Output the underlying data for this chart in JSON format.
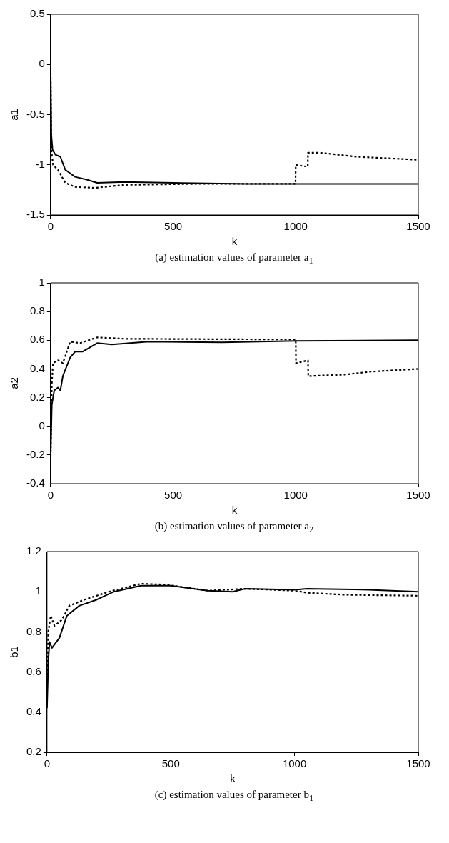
{
  "chart_data": [
    {
      "type": "line",
      "ylabel": "a1",
      "xlabel": "k",
      "xlim": [
        0,
        1500
      ],
      "xticks": [
        0,
        500,
        1000,
        1500
      ],
      "ylim": [
        -1.5,
        0.5
      ],
      "yticks": [
        -1.5,
        -1,
        -0.5,
        0,
        0.5
      ],
      "grid": false,
      "legend": false,
      "marker": "none",
      "annotations": [
        "(a)   estimation values of parameter a$_{1}$"
      ],
      "series": [
        {
          "color": "#000000",
          "line_style": "solid",
          "x": [
            0,
            3,
            8,
            20,
            40,
            60,
            100,
            150,
            190,
            300,
            500,
            800,
            1000,
            1500
          ],
          "values": [
            0,
            -0.7,
            -0.85,
            -0.9,
            -0.92,
            -1.05,
            -1.12,
            -1.15,
            -1.18,
            -1.17,
            -1.18,
            -1.19,
            -1.19,
            -1.19
          ]
        },
        {
          "color": "#000000",
          "line_style": "dotted",
          "x": [
            0,
            3,
            10,
            30,
            60,
            100,
            180,
            300,
            600,
            999,
            1000,
            1049,
            1050,
            1100,
            1250,
            1500
          ],
          "values": [
            0,
            -0.85,
            -1,
            -1.05,
            -1.18,
            -1.22,
            -1.23,
            -1.2,
            -1.19,
            -1.19,
            -1,
            -1.02,
            -0.88,
            -0.88,
            -0.92,
            -0.95
          ]
        }
      ]
    },
    {
      "type": "line",
      "ylabel": "a2",
      "xlabel": "k",
      "xlim": [
        0,
        1500
      ],
      "xticks": [
        0,
        500,
        1000,
        1500
      ],
      "ylim": [
        -0.4,
        1
      ],
      "yticks": [
        -0.4,
        -0.2,
        0,
        0.2,
        0.4,
        0.6,
        0.8,
        1
      ],
      "grid": false,
      "legend": false,
      "marker": "none",
      "annotations": [
        "(b) estimation values of parameter  a$_{2}$"
      ],
      "series": [
        {
          "color": "#000000",
          "line_style": "solid",
          "x": [
            0,
            5,
            15,
            30,
            40,
            50,
            80,
            100,
            130,
            190,
            250,
            400,
            700,
            1000,
            1500
          ],
          "values": [
            -0.22,
            0.15,
            0.25,
            0.27,
            0.25,
            0.35,
            0.48,
            0.52,
            0.52,
            0.58,
            0.57,
            0.59,
            0.585,
            0.595,
            0.6
          ]
        },
        {
          "color": "#000000",
          "line_style": "dotted",
          "x": [
            0,
            5,
            10,
            30,
            50,
            80,
            120,
            190,
            300,
            1000,
            1001,
            1050,
            1051,
            1200,
            1300,
            1500
          ],
          "values": [
            -0.24,
            0.3,
            0.44,
            0.46,
            0.44,
            0.59,
            0.58,
            0.62,
            0.61,
            0.605,
            0.44,
            0.46,
            0.35,
            0.36,
            0.38,
            0.4
          ]
        }
      ]
    },
    {
      "type": "line",
      "ylabel": "b1",
      "xlabel": "k",
      "xlim": [
        0,
        1500
      ],
      "xticks": [
        0,
        500,
        1000,
        1500
      ],
      "ylim": [
        0.2,
        1.2
      ],
      "yticks": [
        0.2,
        0.4,
        0.6,
        0.8,
        1,
        1.2
      ],
      "grid": false,
      "legend": false,
      "marker": "none",
      "annotations": [
        "(c)  estimation values of parameter  b$_{1}$"
      ],
      "series": [
        {
          "color": "#000000",
          "line_style": "solid",
          "x": [
            0,
            5,
            10,
            20,
            50,
            80,
            130,
            200,
            270,
            380,
            500,
            650,
            750,
            800,
            1000,
            1050,
            1300,
            1500
          ],
          "values": [
            0.42,
            0.65,
            0.75,
            0.72,
            0.77,
            0.88,
            0.93,
            0.96,
            1,
            1.03,
            1.03,
            1.005,
            1,
            1.015,
            1.01,
            1.015,
            1.01,
            1
          ]
        },
        {
          "color": "#000000",
          "line_style": "dotted",
          "x": [
            0,
            5,
            15,
            30,
            60,
            90,
            150,
            250,
            380,
            480,
            650,
            800,
            1000,
            1050,
            1200,
            1500
          ],
          "values": [
            0.5,
            0.8,
            0.88,
            0.83,
            0.86,
            0.93,
            0.96,
            1,
            1.04,
            1.035,
            1.005,
            1.015,
            1.005,
            0.995,
            0.985,
            0.98
          ]
        }
      ]
    }
  ]
}
